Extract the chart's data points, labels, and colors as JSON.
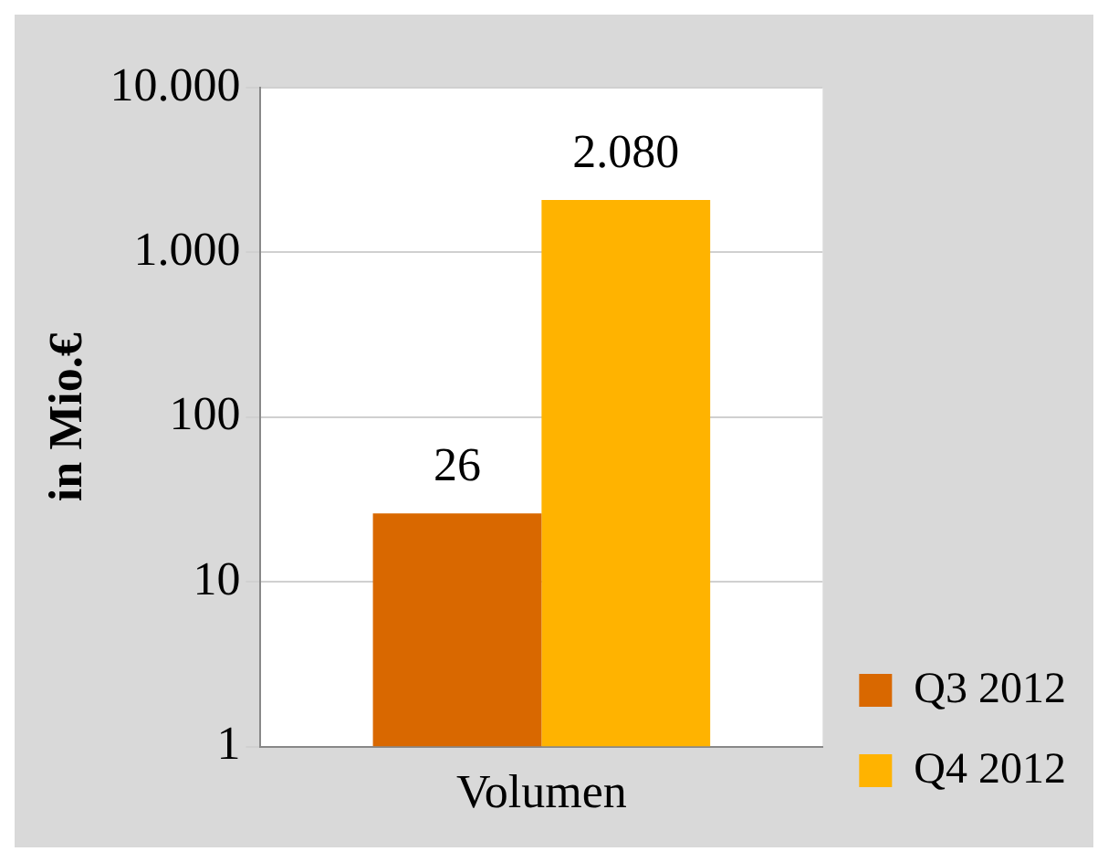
{
  "chart_data": {
    "type": "bar",
    "ylabel": "in Mio.€",
    "categories": [
      "Volumen"
    ],
    "series": [
      {
        "name": "Q3 2012",
        "color": "#d96800",
        "values": [
          26
        ],
        "value_labels": [
          "26"
        ]
      },
      {
        "name": "Q4 2012",
        "color": "#ffb300",
        "values": [
          2080
        ],
        "value_labels": [
          "2.080"
        ]
      }
    ],
    "log": "y",
    "ylim": [
      1,
      10000
    ],
    "yticks": [
      1,
      10,
      100,
      {
        "value": 1000,
        "label": "1.000"
      },
      {
        "value": 10000,
        "label": "10.000"
      }
    ],
    "grid": "y",
    "legend": "right"
  }
}
